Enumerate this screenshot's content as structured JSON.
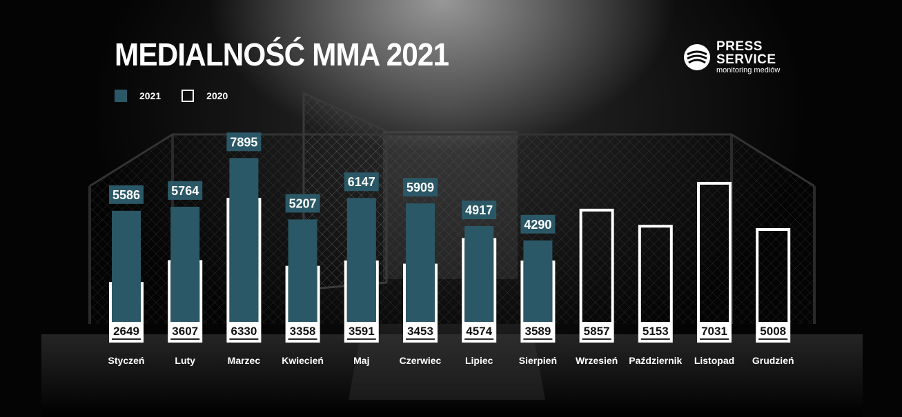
{
  "header": {
    "title": "MEDIALNOŚĆ MMA 2021"
  },
  "legend": {
    "items": [
      {
        "label": "2021",
        "style": "filled"
      },
      {
        "label": "2020",
        "style": "outline"
      }
    ]
  },
  "logo": {
    "line1": "PRESS",
    "line2": "SERVICE",
    "line3": "monitoring mediów"
  },
  "colors": {
    "bar_2021": "#2b5866",
    "bar_2020_outline": "#ffffff",
    "text": "#ffffff",
    "background": "#050505"
  },
  "chart_data": {
    "type": "bar",
    "title": "MEDIALNOŚĆ MMA 2021",
    "categories": [
      "Styczeń",
      "Luty",
      "Marzec",
      "Kwiecień",
      "Maj",
      "Czerwiec",
      "Lipiec",
      "Sierpień",
      "Wrzesień",
      "Październik",
      "Listopad",
      "Grudzień"
    ],
    "series": [
      {
        "name": "2021",
        "values": [
          5586,
          5764,
          7895,
          5207,
          6147,
          5909,
          4917,
          4290,
          null,
          null,
          null,
          null
        ]
      },
      {
        "name": "2020",
        "values": [
          2649,
          3607,
          6330,
          3358,
          3591,
          3453,
          4574,
          3589,
          5857,
          5153,
          7031,
          5008
        ]
      }
    ],
    "legend": "top-left",
    "grid": false
  }
}
